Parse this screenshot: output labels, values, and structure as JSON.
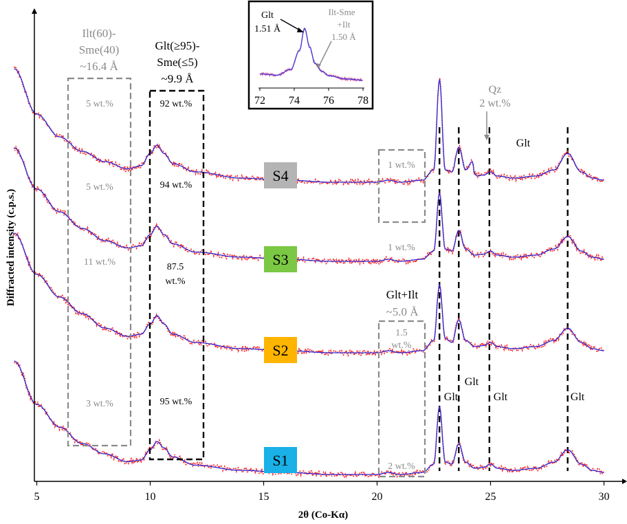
{
  "chart_data": {
    "type": "line",
    "xlabel": "2θ (Co-Kα)",
    "ylabel": "Diffracted intensity (c.p.s.)",
    "xlim": [
      4,
      30
    ],
    "xticks": [
      5,
      10,
      15,
      20,
      25,
      30
    ],
    "colors": {
      "observed": "#ff2020",
      "calculated": "#2a2ad8",
      "black_box": "#000000",
      "grey_box": "#8a8a8a",
      "grey_text": "#8a8a8a"
    },
    "samples": [
      {
        "name": "S1",
        "color": "#1ab0e8",
        "x": [
          4,
          5,
          6,
          7,
          8,
          9,
          9.6,
          10,
          10.3,
          10.6,
          11,
          12,
          14,
          16,
          18,
          20,
          20.5,
          21,
          22,
          22.5,
          22.75,
          23,
          23.3,
          23.6,
          23.9,
          24.3,
          24.7,
          25,
          25.3,
          26,
          27,
          27.8,
          28.4,
          29,
          29.5,
          30
        ],
        "y": [
          0.55,
          0.34,
          0.23,
          0.15,
          0.1,
          0.062,
          0.07,
          0.12,
          0.16,
          0.13,
          0.085,
          0.045,
          0.02,
          0.01,
          0.0,
          0.0,
          0.01,
          0.0,
          0.01,
          0.05,
          0.33,
          0.06,
          0.05,
          0.15,
          0.06,
          0.03,
          0.035,
          0.05,
          0.03,
          0.02,
          0.03,
          0.06,
          0.12,
          0.05,
          0.02,
          0.01
        ]
      },
      {
        "name": "S2",
        "color": "#ffb400",
        "x": [
          4,
          5,
          6,
          7,
          8,
          9,
          9.6,
          10,
          10.3,
          10.6,
          11,
          12,
          14,
          16,
          18,
          20,
          20.5,
          21,
          22,
          22.5,
          22.75,
          23,
          23.3,
          23.6,
          23.9,
          24.3,
          24.7,
          25,
          25.3,
          26,
          27,
          27.8,
          28.4,
          29,
          29.5,
          30
        ],
        "y": [
          0.58,
          0.38,
          0.27,
          0.19,
          0.12,
          0.08,
          0.09,
          0.14,
          0.18,
          0.14,
          0.09,
          0.05,
          0.02,
          0.01,
          0.0,
          0.0,
          0.01,
          0.0,
          0.01,
          0.06,
          0.33,
          0.07,
          0.05,
          0.16,
          0.06,
          0.03,
          0.035,
          0.05,
          0.03,
          0.02,
          0.03,
          0.06,
          0.12,
          0.05,
          0.02,
          0.01
        ]
      },
      {
        "name": "S3",
        "color": "#7ac843",
        "x": [
          4,
          5,
          6,
          7,
          8,
          9,
          9.6,
          10,
          10.3,
          10.6,
          11,
          12,
          14,
          16,
          18,
          20,
          20.5,
          21,
          22,
          22.5,
          22.75,
          23,
          23.3,
          23.6,
          23.9,
          24.3,
          24.7,
          25,
          25.3,
          26,
          27,
          27.8,
          28.4,
          29,
          29.5,
          30
        ],
        "y": [
          0.55,
          0.35,
          0.24,
          0.16,
          0.1,
          0.065,
          0.075,
          0.13,
          0.17,
          0.13,
          0.085,
          0.045,
          0.02,
          0.01,
          0.0,
          0.0,
          0.01,
          0.0,
          0.01,
          0.05,
          0.33,
          0.06,
          0.05,
          0.15,
          0.06,
          0.03,
          0.035,
          0.05,
          0.03,
          0.02,
          0.03,
          0.06,
          0.12,
          0.05,
          0.02,
          0.01
        ]
      },
      {
        "name": "S4",
        "color": "#b4b4b4",
        "x": [
          4,
          5,
          6,
          7,
          8,
          9,
          9.6,
          10,
          10.3,
          10.6,
          11,
          12,
          14,
          16,
          18,
          20,
          20.5,
          21,
          22,
          22.5,
          22.75,
          23,
          23.3,
          23.6,
          23.9,
          24.2,
          24.3,
          24.4,
          24.7,
          25,
          25.3,
          26,
          27,
          27.8,
          28.4,
          29,
          29.5,
          30
        ],
        "y": [
          0.55,
          0.33,
          0.22,
          0.15,
          0.1,
          0.065,
          0.08,
          0.14,
          0.18,
          0.14,
          0.09,
          0.05,
          0.02,
          0.01,
          0.0,
          0.0,
          0.01,
          0.0,
          0.01,
          0.06,
          0.5,
          0.06,
          0.05,
          0.17,
          0.06,
          0.1,
          0.04,
          0.03,
          0.035,
          0.05,
          0.03,
          0.02,
          0.03,
          0.06,
          0.14,
          0.05,
          0.02,
          0.01
        ]
      }
    ],
    "glt_lines_x": [
      22.75,
      23.6,
      24.95,
      28.4
    ],
    "black_box": {
      "x": [
        9.15,
        11.5
      ],
      "label_lines": [
        "Glt(≥95)-",
        "Sme(≤5)",
        "~9.9 Å"
      ]
    },
    "grey_box_left": {
      "x": [
        5.6,
        8.3
      ],
      "label_lines": [
        "Ilt(60)-",
        "Sme(40)",
        "~16.4 Å"
      ]
    },
    "grey_boxes_right": {
      "x": [
        19.4,
        21.5
      ],
      "label_lines": [
        "Glt+Ilt",
        "~5.0 Å"
      ]
    },
    "wt_labels": {
      "S4": {
        "left": "5 wt.%",
        "black": "92 wt.%",
        "right": "1 wt.%"
      },
      "S3": {
        "left": "5 wt.%",
        "black": "94 wt.%",
        "right": "1 wt.%"
      },
      "S2": {
        "left": "11 wt.%",
        "black_1": "87.5",
        "black_2": "wt.%",
        "right_1": "1.5",
        "right_2": "wt.%"
      },
      "S1": {
        "left": "3 wt.%",
        "black": "95 wt.%",
        "right": "2 wt.%"
      }
    },
    "peak_labels": {
      "glt": "Glt",
      "qz_1": "Qz",
      "qz_2": "2 wt.%"
    },
    "inset": {
      "xlim": [
        72,
        78
      ],
      "xticks": [
        72,
        74,
        76,
        78
      ],
      "x": [
        72,
        73,
        73.8,
        74.3,
        74.6,
        74.9,
        75.2,
        75.6,
        76,
        77,
        78
      ],
      "y": [
        0.18,
        0.16,
        0.25,
        0.55,
        0.9,
        0.6,
        0.35,
        0.22,
        0.15,
        0.1,
        0.08
      ],
      "label_glt_1": "Glt",
      "label_glt_2": "1.51 Å",
      "label_ilt_1": "Ilt-Sme",
      "label_ilt_2": "+Ilt",
      "label_ilt_3": "1.50 Å"
    }
  }
}
